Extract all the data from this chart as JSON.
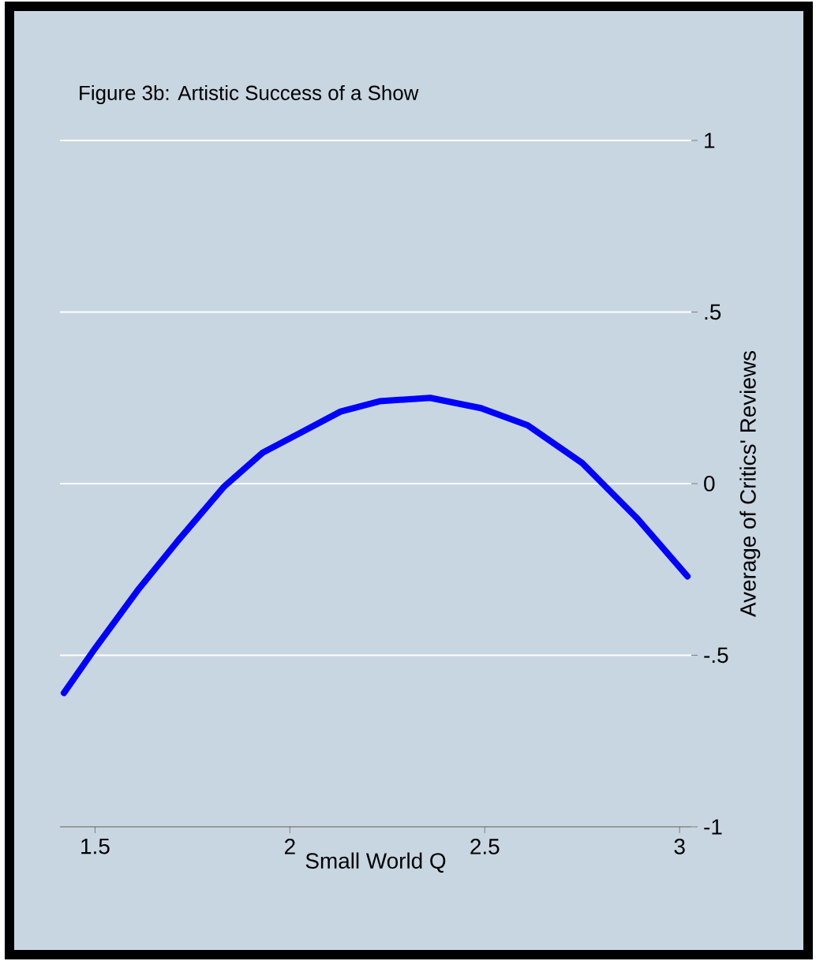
{
  "chart_data": {
    "type": "line",
    "title": "Figure 3b: Artistic Success of a Show",
    "xlabel": "Small World Q",
    "ylabel": "Average of Critics' Reviews",
    "x": [
      1.42,
      1.5,
      1.61,
      1.71,
      1.83,
      1.93,
      2.03,
      2.13,
      2.23,
      2.36,
      2.49,
      2.61,
      2.75,
      2.89,
      3.02
    ],
    "series": [
      {
        "color": "#0000ff",
        "values": [
          -0.61,
          -0.48,
          -0.31,
          -0.17,
          -0.01,
          0.09,
          0.15,
          0.21,
          0.24,
          0.25,
          0.22,
          0.17,
          0.06,
          -0.1,
          -0.27
        ]
      }
    ],
    "xlim": [
      1.41,
      3.03
    ],
    "ylim": [
      -1,
      1
    ],
    "xticks": [
      1.5,
      2,
      2.5,
      3
    ],
    "yticks": [
      1,
      {
        "value": 0.5,
        "label": ".5"
      },
      0,
      {
        "value": -0.5,
        "label": "-.5"
      },
      -1
    ],
    "grid": "y",
    "marker": "none",
    "line_style": "solid"
  }
}
